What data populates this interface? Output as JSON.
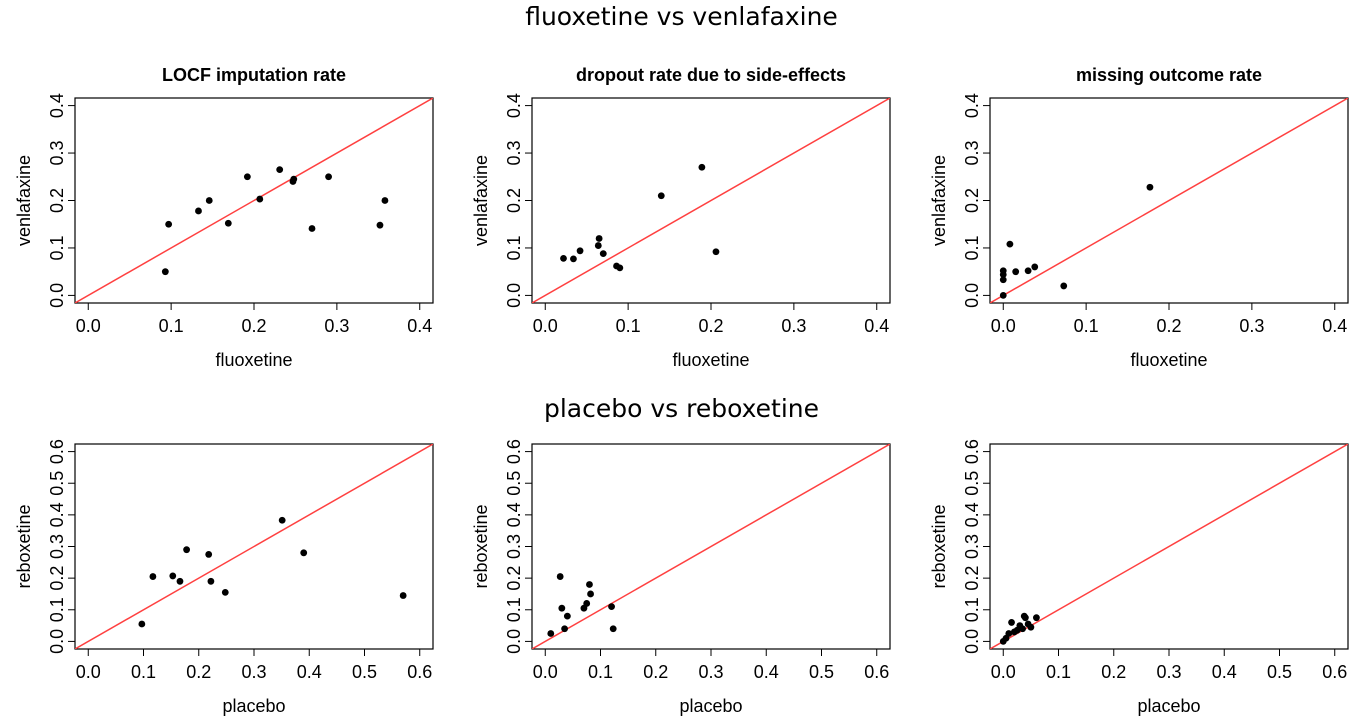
{
  "row_titles": [
    "fluoxetine vs venlafaxine",
    "placebo vs reboxetine"
  ],
  "colors": {
    "identity_line": "#ff4040",
    "points": "#000000",
    "frame": "#000000"
  },
  "chart_data": [
    {
      "type": "scatter",
      "row": 0,
      "col": 0,
      "title": "LOCF imputation rate",
      "xlabel": "fluoxetine",
      "ylabel": "venlafaxine",
      "xlim": [
        0,
        0.4
      ],
      "ylim": [
        0,
        0.4
      ],
      "xticks": [
        "0.0",
        "0.1",
        "0.2",
        "0.3",
        "0.4"
      ],
      "yticks": [
        "0.0",
        "0.1",
        "0.2",
        "0.3",
        "0.4"
      ],
      "reference_line": "y = x",
      "points": [
        [
          0.093,
          0.05
        ],
        [
          0.097,
          0.15
        ],
        [
          0.133,
          0.178
        ],
        [
          0.146,
          0.2
        ],
        [
          0.169,
          0.152
        ],
        [
          0.192,
          0.25
        ],
        [
          0.207,
          0.203
        ],
        [
          0.231,
          0.265
        ],
        [
          0.247,
          0.24
        ],
        [
          0.248,
          0.245
        ],
        [
          0.27,
          0.141
        ],
        [
          0.29,
          0.25
        ],
        [
          0.352,
          0.148
        ],
        [
          0.358,
          0.2
        ]
      ]
    },
    {
      "type": "scatter",
      "row": 0,
      "col": 1,
      "title": "dropout rate due to side-effects",
      "xlabel": "fluoxetine",
      "ylabel": "venlafaxine",
      "xlim": [
        0,
        0.4
      ],
      "ylim": [
        0,
        0.4
      ],
      "xticks": [
        "0.0",
        "0.1",
        "0.2",
        "0.3",
        "0.4"
      ],
      "yticks": [
        "0.0",
        "0.1",
        "0.2",
        "0.3",
        "0.4"
      ],
      "reference_line": "y = x",
      "points": [
        [
          0.022,
          0.078
        ],
        [
          0.034,
          0.077
        ],
        [
          0.042,
          0.094
        ],
        [
          0.064,
          0.105
        ],
        [
          0.065,
          0.12
        ],
        [
          0.07,
          0.088
        ],
        [
          0.086,
          0.062
        ],
        [
          0.09,
          0.058
        ],
        [
          0.14,
          0.21
        ],
        [
          0.189,
          0.27
        ],
        [
          0.206,
          0.092
        ]
      ]
    },
    {
      "type": "scatter",
      "row": 0,
      "col": 2,
      "title": "missing outcome rate",
      "xlabel": "fluoxetine",
      "ylabel": "venlafaxine",
      "xlim": [
        0,
        0.4
      ],
      "ylim": [
        0,
        0.4
      ],
      "xticks": [
        "0.0",
        "0.1",
        "0.2",
        "0.3",
        "0.4"
      ],
      "yticks": [
        "0.0",
        "0.1",
        "0.2",
        "0.3",
        "0.4"
      ],
      "reference_line": "y = x",
      "points": [
        [
          0.0,
          0.052
        ],
        [
          0.0,
          0.044
        ],
        [
          0.0,
          0.033
        ],
        [
          0.0,
          0.0
        ],
        [
          0.008,
          0.108
        ],
        [
          0.015,
          0.05
        ],
        [
          0.03,
          0.052
        ],
        [
          0.038,
          0.06
        ],
        [
          0.073,
          0.02
        ],
        [
          0.177,
          0.228
        ]
      ]
    },
    {
      "type": "scatter",
      "row": 1,
      "col": 0,
      "title": "",
      "xlabel": "placebo",
      "ylabel": "reboxetine",
      "xlim": [
        0,
        0.6
      ],
      "ylim": [
        0,
        0.6
      ],
      "xticks": [
        "0.0",
        "0.1",
        "0.2",
        "0.3",
        "0.4",
        "0.5",
        "0.6"
      ],
      "yticks": [
        "0.0",
        "0.1",
        "0.2",
        "0.3",
        "0.4",
        "0.5",
        "0.6"
      ],
      "reference_line": "y = x",
      "points": [
        [
          0.097,
          0.055
        ],
        [
          0.117,
          0.205
        ],
        [
          0.153,
          0.207
        ],
        [
          0.166,
          0.19
        ],
        [
          0.178,
          0.29
        ],
        [
          0.218,
          0.275
        ],
        [
          0.222,
          0.19
        ],
        [
          0.248,
          0.155
        ],
        [
          0.351,
          0.383
        ],
        [
          0.39,
          0.28
        ],
        [
          0.57,
          0.145
        ]
      ]
    },
    {
      "type": "scatter",
      "row": 1,
      "col": 1,
      "title": "",
      "xlabel": "placebo",
      "ylabel": "reboxetine",
      "xlim": [
        0,
        0.6
      ],
      "ylim": [
        0,
        0.6
      ],
      "xticks": [
        "0.0",
        "0.1",
        "0.2",
        "0.3",
        "0.4",
        "0.5",
        "0.6"
      ],
      "yticks": [
        "0.0",
        "0.1",
        "0.2",
        "0.3",
        "0.4",
        "0.5",
        "0.6"
      ],
      "reference_line": "y = x",
      "points": [
        [
          0.01,
          0.025
        ],
        [
          0.027,
          0.205
        ],
        [
          0.03,
          0.105
        ],
        [
          0.035,
          0.04
        ],
        [
          0.04,
          0.08
        ],
        [
          0.07,
          0.105
        ],
        [
          0.075,
          0.12
        ],
        [
          0.08,
          0.18
        ],
        [
          0.082,
          0.15
        ],
        [
          0.12,
          0.11
        ],
        [
          0.123,
          0.04
        ]
      ]
    },
    {
      "type": "scatter",
      "row": 1,
      "col": 2,
      "title": "",
      "xlabel": "placebo",
      "ylabel": "reboxetine",
      "xlim": [
        0,
        0.6
      ],
      "ylim": [
        0,
        0.6
      ],
      "xticks": [
        "0.0",
        "0.1",
        "0.2",
        "0.3",
        "0.4",
        "0.5",
        "0.6"
      ],
      "yticks": [
        "0.0",
        "0.1",
        "0.2",
        "0.3",
        "0.4",
        "0.5",
        "0.6"
      ],
      "reference_line": "y = x",
      "points": [
        [
          0.0,
          0.0
        ],
        [
          0.005,
          0.01
        ],
        [
          0.01,
          0.025
        ],
        [
          0.015,
          0.06
        ],
        [
          0.02,
          0.03
        ],
        [
          0.025,
          0.035
        ],
        [
          0.03,
          0.05
        ],
        [
          0.035,
          0.04
        ],
        [
          0.038,
          0.08
        ],
        [
          0.04,
          0.075
        ],
        [
          0.045,
          0.055
        ],
        [
          0.05,
          0.045
        ],
        [
          0.06,
          0.075
        ]
      ]
    }
  ]
}
